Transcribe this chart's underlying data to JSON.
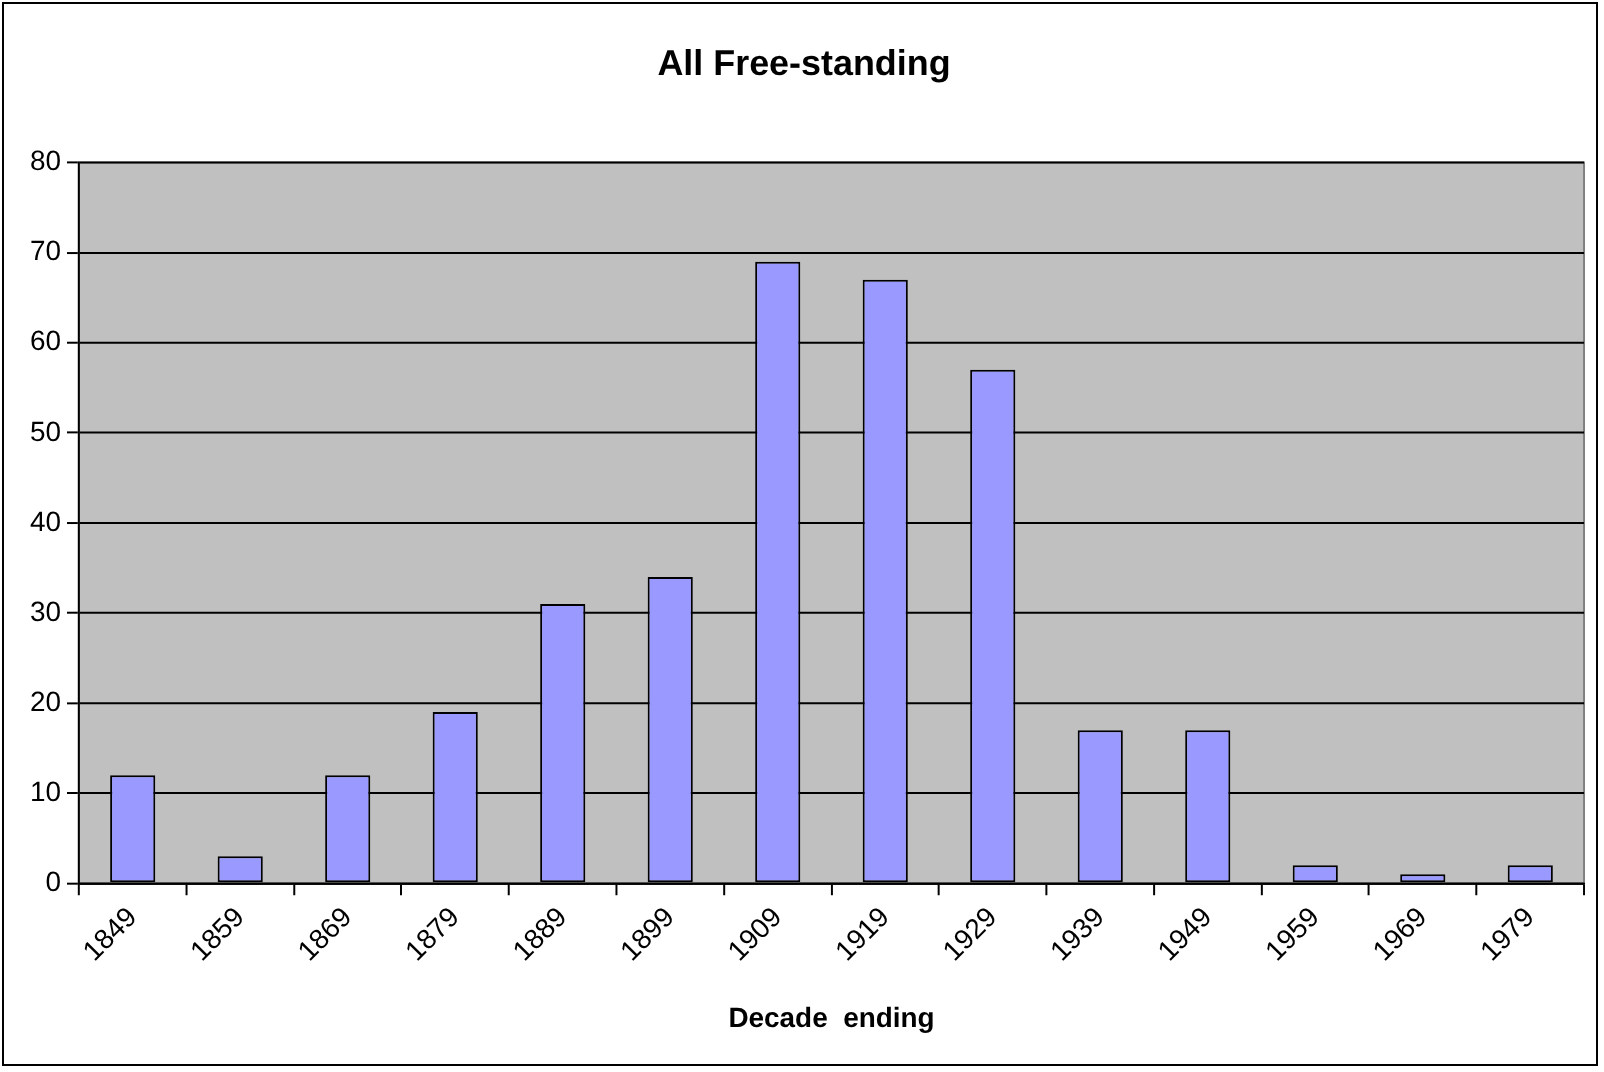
{
  "chart_data": {
    "type": "bar",
    "title": "All Free-standing",
    "xlabel": "Decade  ending",
    "categories": [
      "1849",
      "1859",
      "1869",
      "1879",
      "1889",
      "1899",
      "1909",
      "1919",
      "1929",
      "1939",
      "1949",
      "1959",
      "1969",
      "1979"
    ],
    "values": [
      12,
      3,
      12,
      19,
      31,
      34,
      69,
      67,
      57,
      17,
      17,
      2,
      1,
      2
    ],
    "color": "#9999ff",
    "ylim": [
      0,
      80
    ],
    "yticks": [
      0,
      10,
      20,
      30,
      40,
      50,
      60,
      70,
      80
    ],
    "grid": "y"
  }
}
